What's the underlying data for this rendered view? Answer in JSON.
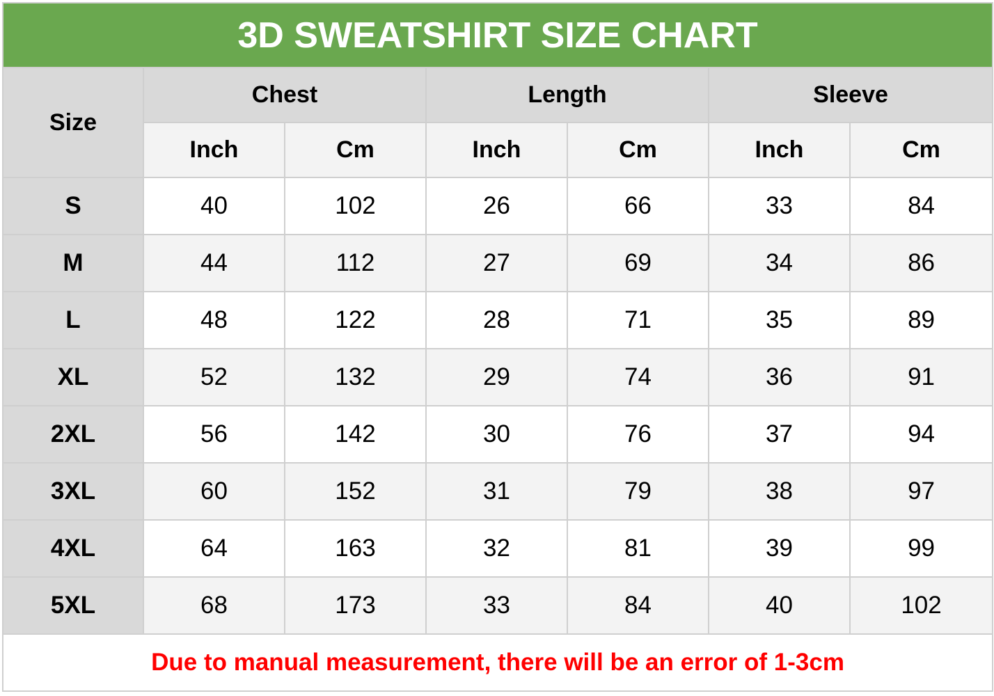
{
  "title": "3D SWEATSHIRT SIZE CHART",
  "headers": {
    "size": "Size",
    "groups": [
      "Chest",
      "Length",
      "Sleeve"
    ],
    "units": [
      "Inch",
      "Cm",
      "Inch",
      "Cm",
      "Inch",
      "Cm"
    ]
  },
  "rows": [
    {
      "size": "S",
      "values": [
        "40",
        "102",
        "26",
        "66",
        "33",
        "84"
      ]
    },
    {
      "size": "M",
      "values": [
        "44",
        "112",
        "27",
        "69",
        "34",
        "86"
      ]
    },
    {
      "size": "L",
      "values": [
        "48",
        "122",
        "28",
        "71",
        "35",
        "89"
      ]
    },
    {
      "size": "XL",
      "values": [
        "52",
        "132",
        "29",
        "74",
        "36",
        "91"
      ]
    },
    {
      "size": "2XL",
      "values": [
        "56",
        "142",
        "30",
        "76",
        "37",
        "94"
      ]
    },
    {
      "size": "3XL",
      "values": [
        "60",
        "152",
        "31",
        "79",
        "38",
        "97"
      ]
    },
    {
      "size": "4XL",
      "values": [
        "64",
        "163",
        "32",
        "81",
        "39",
        "99"
      ]
    },
    {
      "size": "5XL",
      "values": [
        "68",
        "173",
        "33",
        "84",
        "40",
        "102"
      ]
    }
  ],
  "note": "Due to manual measurement, there will be an error of 1-3cm",
  "colors": {
    "title_bg": "#6aa84f",
    "header_bg": "#d9d9d9",
    "alt_row_bg": "#f3f3f3",
    "note_text": "#ff0000"
  }
}
